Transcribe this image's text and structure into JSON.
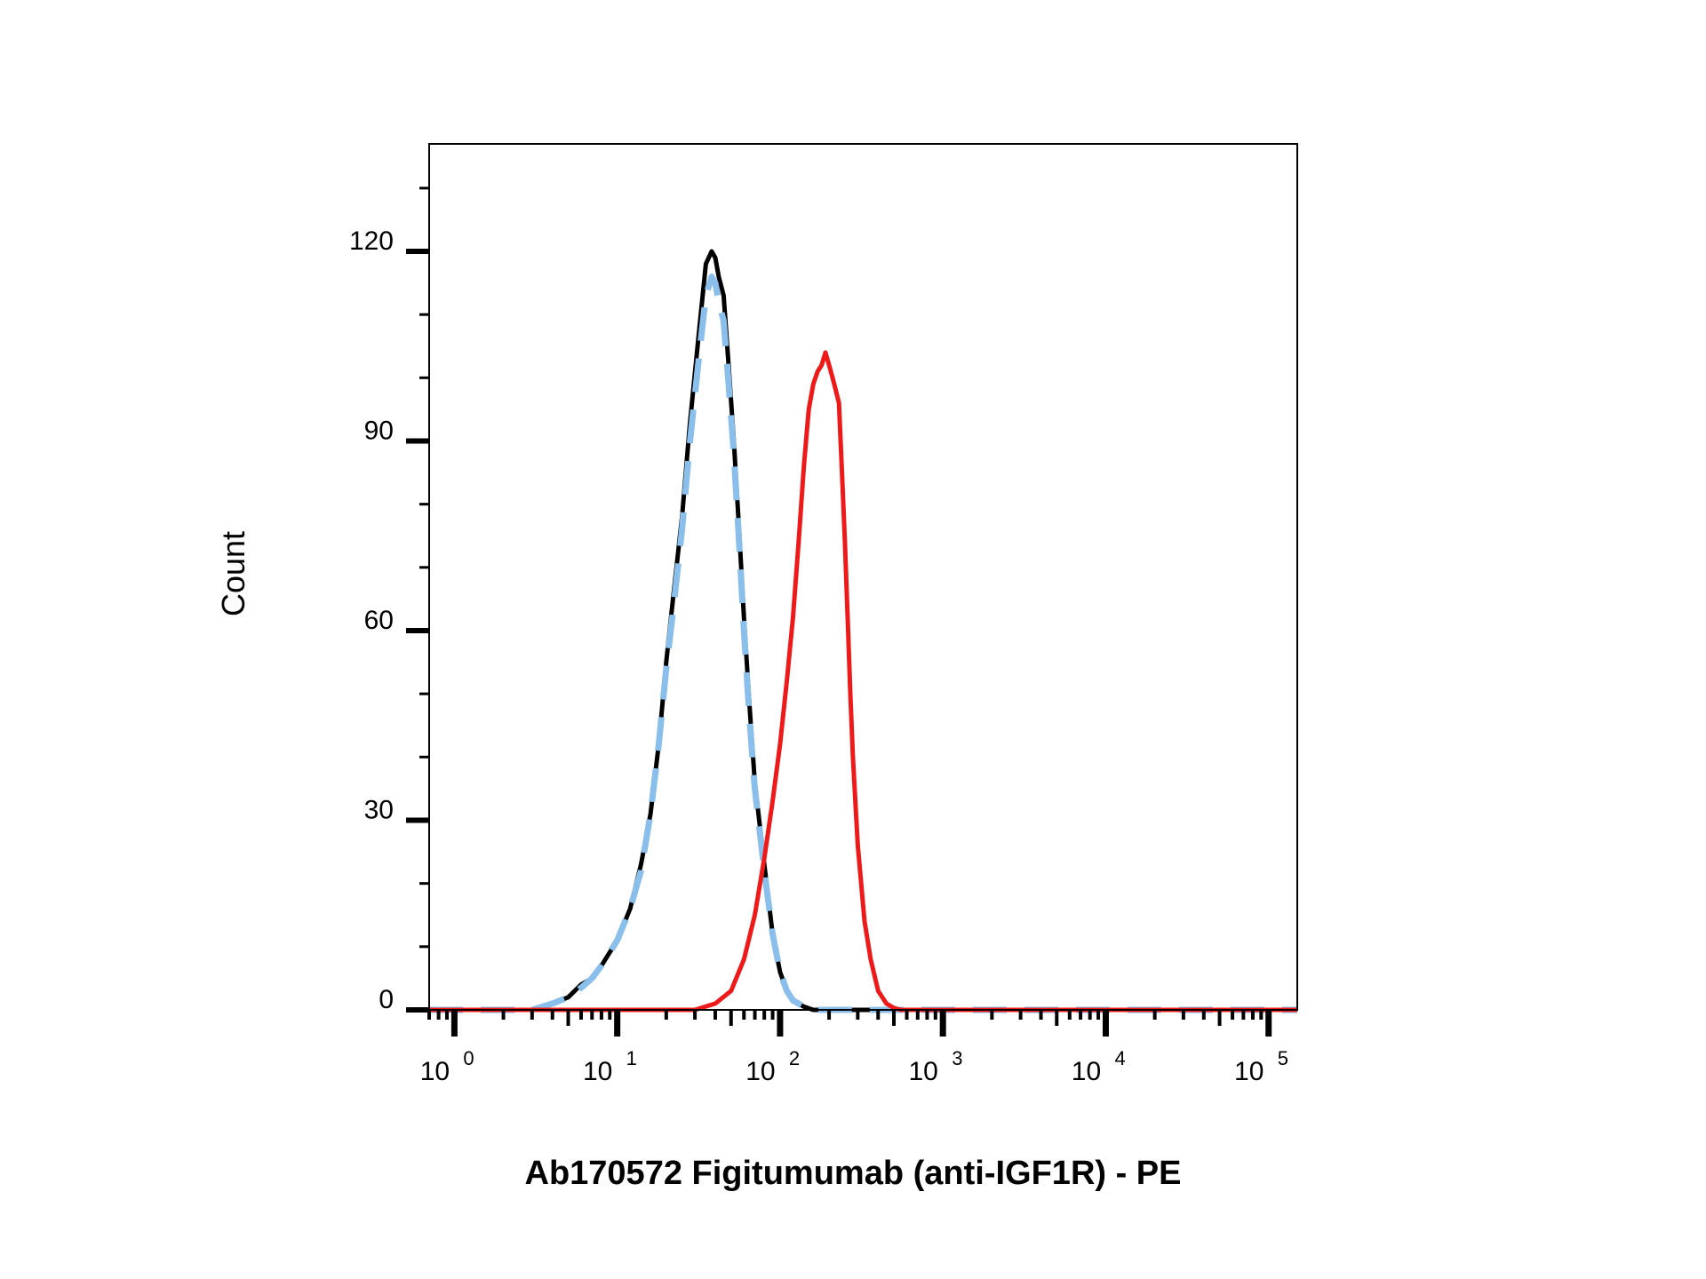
{
  "chart_data": {
    "type": "line",
    "title": "",
    "xlabel": "Ab170572 Figitumumab (anti-IGF1R) - PE",
    "ylabel": "Count",
    "x_scale": "log",
    "xlim": [
      0.7,
      150000
    ],
    "ylim": [
      0,
      137
    ],
    "grid": false,
    "x_ticks": [
      {
        "base": "10",
        "exp": "0",
        "value": 1
      },
      {
        "base": "10",
        "exp": "1",
        "value": 10
      },
      {
        "base": "10",
        "exp": "2",
        "value": 100
      },
      {
        "base": "10",
        "exp": "3",
        "value": 1000
      },
      {
        "base": "10",
        "exp": "4",
        "value": 10000
      },
      {
        "base": "10",
        "exp": "5",
        "value": 100000
      }
    ],
    "y_ticks": [
      {
        "label": "0",
        "value": 0
      },
      {
        "label": "30",
        "value": 30
      },
      {
        "label": "60",
        "value": 60
      },
      {
        "label": "90",
        "value": 90
      },
      {
        "label": "120",
        "value": 120
      }
    ],
    "series": [
      {
        "color": "#000000",
        "dash": "solid",
        "x": [
          0.7,
          3,
          4,
          5,
          6,
          7,
          8,
          10,
          12,
          14,
          16,
          18,
          20,
          22,
          25,
          28,
          32,
          35,
          38,
          40,
          42,
          45,
          48,
          52,
          56,
          60,
          65,
          70,
          80,
          90,
          100,
          110,
          120,
          140,
          160,
          200,
          300,
          500,
          150000
        ],
        "y": [
          0,
          0,
          1,
          2,
          4,
          5,
          7,
          11,
          16,
          23,
          31,
          42,
          55,
          65,
          78,
          93,
          108,
          118,
          120,
          119,
          116,
          113,
          103,
          90,
          76,
          62,
          48,
          36,
          23,
          12,
          6,
          3,
          1.5,
          0.5,
          0,
          0,
          0,
          0,
          0
        ]
      },
      {
        "color": "#8ABFEC",
        "dash": "dashed",
        "x": [
          0.7,
          3,
          4,
          5,
          6,
          7,
          8,
          10,
          12,
          14,
          16,
          18,
          20,
          22,
          25,
          28,
          32,
          35,
          38,
          40,
          42,
          45,
          48,
          52,
          56,
          60,
          65,
          70,
          80,
          90,
          100,
          110,
          120,
          140,
          160,
          200,
          300,
          500,
          150000
        ],
        "y": [
          0,
          0,
          1,
          2,
          3.5,
          5,
          7,
          11,
          16,
          22,
          31,
          42,
          54,
          63,
          76,
          90,
          104,
          113,
          116,
          115,
          112,
          109,
          100,
          88,
          74,
          60,
          46,
          35,
          22,
          12,
          6,
          3,
          1.5,
          0.5,
          0,
          0,
          0,
          0,
          0
        ]
      },
      {
        "color": "#EE1A1A",
        "dash": "solid",
        "x": [
          0.7,
          30,
          40,
          50,
          60,
          70,
          80,
          90,
          100,
          110,
          120,
          130,
          140,
          150,
          160,
          170,
          180,
          190,
          200,
          210,
          220,
          230,
          240,
          250,
          260,
          270,
          280,
          300,
          330,
          360,
          400,
          450,
          500,
          550,
          600,
          700,
          800,
          150000
        ],
        "y": [
          0,
          0,
          1,
          3,
          8,
          15,
          24,
          33,
          42,
          52,
          62,
          74,
          86,
          95,
          99,
          101,
          102,
          104,
          102,
          100,
          98,
          96,
          85,
          74,
          62,
          50,
          40,
          26,
          14,
          8,
          3,
          1,
          0.3,
          0,
          0,
          0,
          0,
          0
        ]
      }
    ]
  }
}
